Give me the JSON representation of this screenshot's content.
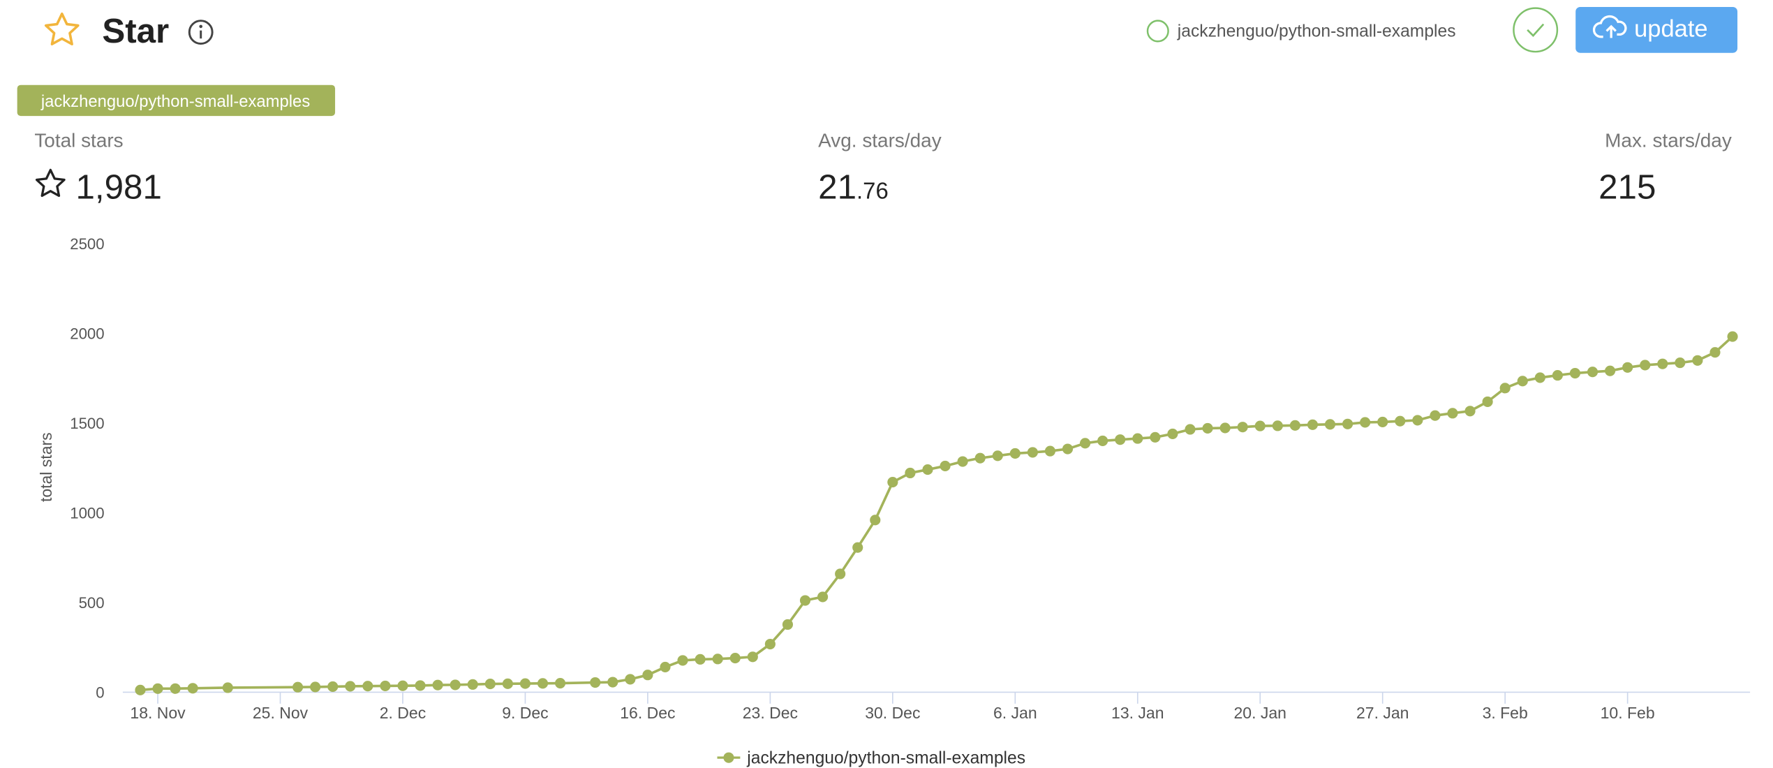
{
  "header": {
    "title": "Star",
    "repo_selector": "jackzhenguo/python-small-examples",
    "update_button": "update"
  },
  "tag": "jackzhenguo/python-small-examples",
  "stats": {
    "total": {
      "label": "Total stars",
      "value": "1,981"
    },
    "average": {
      "label": "Avg. stars/day",
      "integer": "21",
      "fraction": ".76"
    },
    "maximum": {
      "label": "Max. stars/day",
      "value": "215"
    }
  },
  "chart_data": {
    "type": "line",
    "y_label": "total stars",
    "x": [
      "17. Nov",
      "18. Nov",
      "19. Nov",
      "20. Nov",
      "22. Nov",
      "26. Nov",
      "27. Nov",
      "28. Nov",
      "29. Nov",
      "30. Nov",
      "1. Dec",
      "2. Dec",
      "3. Dec",
      "4. Dec",
      "5. Dec",
      "6. Dec",
      "7. Dec",
      "8. Dec",
      "9. Dec",
      "10. Dec",
      "11. Dec",
      "13. Dec",
      "14. Dec",
      "15. Dec",
      "16. Dec",
      "17. Dec",
      "18. Dec",
      "19. Dec",
      "20. Dec",
      "21. Dec",
      "22. Dec",
      "23. Dec",
      "24. Dec",
      "25. Dec",
      "26. Dec",
      "27. Dec",
      "28. Dec",
      "29. Dec",
      "30. Dec",
      "31. Dec",
      "1. Jan",
      "2. Jan",
      "3. Jan",
      "4. Jan",
      "5. Jan",
      "6. Jan",
      "7. Jan",
      "8. Jan",
      "9. Jan",
      "10. Jan",
      "11. Jan",
      "12. Jan",
      "13. Jan",
      "14. Jan",
      "15. Jan",
      "16. Jan",
      "17. Jan",
      "18. Jan",
      "19. Jan",
      "20. Jan",
      "21. Jan",
      "22. Jan",
      "23. Jan",
      "24. Jan",
      "25. Jan",
      "26. Jan",
      "27. Jan",
      "28. Jan",
      "29. Jan",
      "30. Jan",
      "31. Jan",
      "1. Feb",
      "2. Feb",
      "3. Feb",
      "4. Feb",
      "5. Feb",
      "6. Feb",
      "7. Feb",
      "8. Feb",
      "9. Feb",
      "10. Feb",
      "11. Feb",
      "12. Feb",
      "13. Feb",
      "14. Feb",
      "15. Feb",
      "16. Feb"
    ],
    "series": [
      {
        "name": "jackzhenguo/python-small-examples",
        "color": "#a3b35a",
        "values": [
          12,
          20,
          20,
          22,
          25,
          28,
          29,
          31,
          33,
          34,
          35,
          36,
          37,
          40,
          41,
          43,
          46,
          47,
          48,
          49,
          50,
          54,
          56,
          72,
          96,
          140,
          177,
          183,
          185,
          190,
          197,
          268,
          377,
          511,
          531,
          659,
          806,
          959,
          1170,
          1221,
          1240,
          1260,
          1285,
          1304,
          1317,
          1330,
          1336,
          1343,
          1355,
          1387,
          1400,
          1407,
          1413,
          1420,
          1439,
          1464,
          1470,
          1472,
          1477,
          1483,
          1484,
          1486,
          1490,
          1492,
          1494,
          1503,
          1505,
          1510,
          1515,
          1541,
          1554,
          1566,
          1618,
          1694,
          1733,
          1752,
          1765,
          1777,
          1784,
          1790,
          1809,
          1822,
          1829,
          1835,
          1848,
          1893,
          1981
        ]
      }
    ],
    "xlim": [
      "16. Nov",
      "17. Feb"
    ],
    "xticks": [
      "18. Nov",
      "25. Nov",
      "2. Dec",
      "9. Dec",
      "16. Dec",
      "23. Dec",
      "30. Dec",
      "6. Jan",
      "13. Jan",
      "20. Jan",
      "27. Jan",
      "3. Feb",
      "10. Feb"
    ],
    "ylim": [
      0,
      2500
    ],
    "yticks": [
      0,
      500,
      1000,
      1500,
      2000,
      2500
    ],
    "legend": "bottom"
  }
}
